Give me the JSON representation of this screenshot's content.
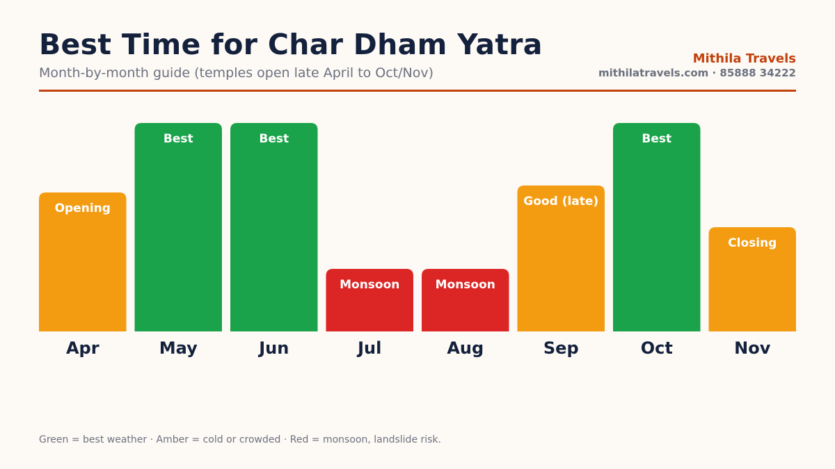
{
  "header": {
    "title": "Best Time for Char Dham Yatra",
    "subtitle": "Month-by-month guide (temples open late April to Oct/Nov)",
    "brand": "Mithila Travels",
    "contact": "mithilatravels.com · 85888 34222"
  },
  "footer": {
    "note": "Green = best weather · Amber = cold or crowded · Red = monsoon, landslide risk."
  },
  "colors": {
    "best": "#1aa34a",
    "amber": "#f39c12",
    "red": "#dc2626",
    "accent": "#c2410c",
    "title": "#14213d"
  },
  "chart_data": {
    "type": "bar",
    "categories": [
      "Apr",
      "May",
      "Jun",
      "Jul",
      "Aug",
      "Sep",
      "Oct",
      "Nov"
    ],
    "values": [
      2,
      3,
      3,
      0.9,
      0.9,
      2.1,
      3,
      1.5
    ],
    "labels": [
      "Opening",
      "Best",
      "Best",
      "Monsoon",
      "Monsoon",
      "Good (late)",
      "Best",
      "Closing"
    ],
    "status": [
      "amber",
      "best",
      "best",
      "red",
      "red",
      "amber",
      "best",
      "amber"
    ],
    "ylim": [
      0,
      3
    ],
    "grid": false,
    "legend": "none"
  }
}
